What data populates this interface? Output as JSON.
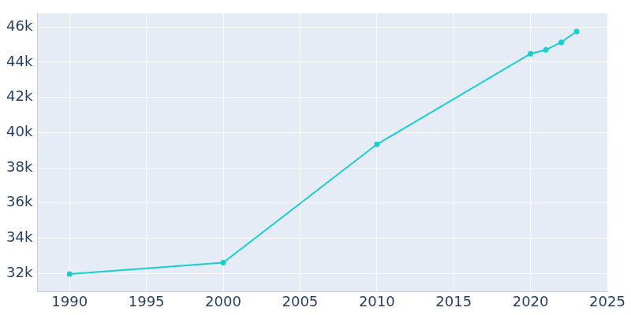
{
  "chart_data": {
    "type": "line",
    "x": [
      1990,
      2000,
      2010,
      2020,
      2021,
      2022,
      2023
    ],
    "values": [
      31960,
      32610,
      39330,
      44480,
      44700,
      45130,
      45740
    ],
    "color": "#17cfcf",
    "marker": "circle",
    "xlim": [
      1987.9,
      2025
    ],
    "xticks": [
      1990,
      1995,
      2000,
      2005,
      2010,
      2015,
      2020,
      2025
    ],
    "ylim": [
      30960,
      46780
    ],
    "yticks": [
      {
        "value": 32000,
        "label": "32k"
      },
      {
        "value": 34000,
        "label": "34k"
      },
      {
        "value": 36000,
        "label": "36k"
      },
      {
        "value": 38000,
        "label": "38k"
      },
      {
        "value": 40000,
        "label": "40k"
      },
      {
        "value": 42000,
        "label": "42k"
      },
      {
        "value": 44000,
        "label": "44k"
      },
      {
        "value": 46000,
        "label": "46k"
      }
    ],
    "grid": true
  }
}
